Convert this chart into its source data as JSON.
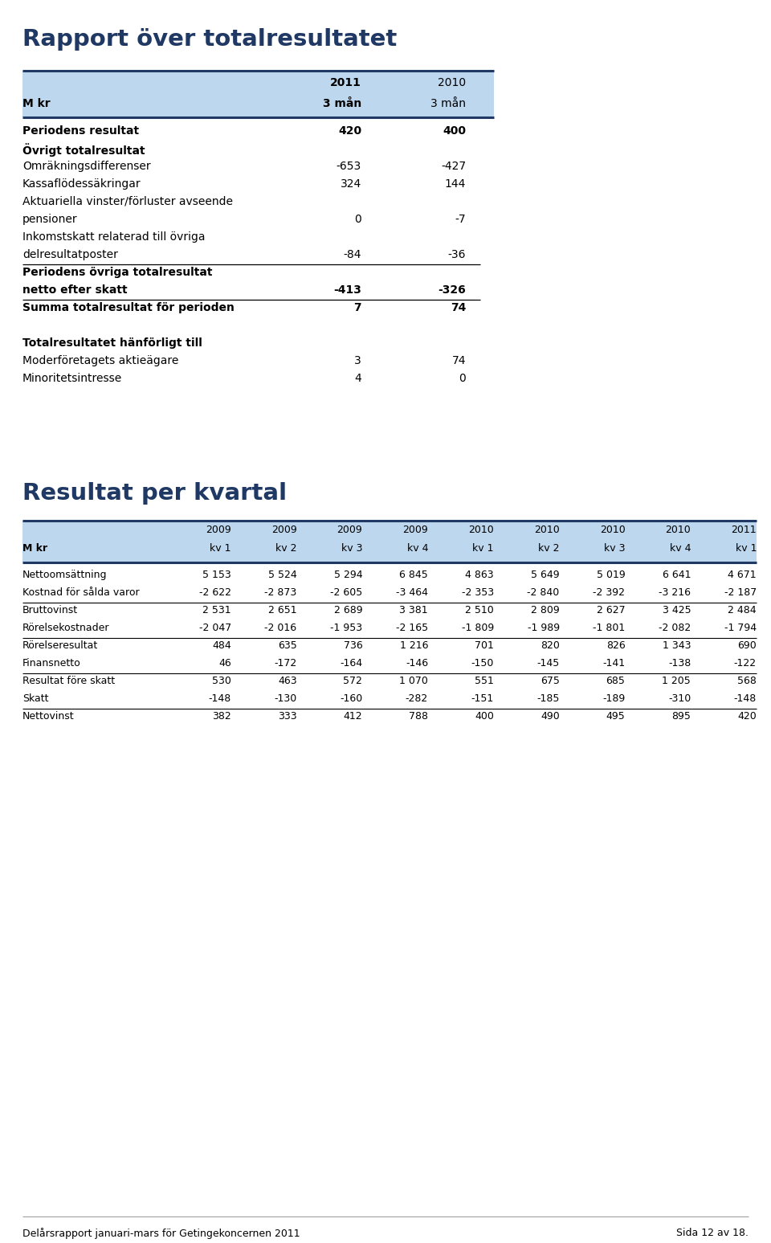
{
  "title1": "Rapport över totalresultatet",
  "title2": "Resultat per kvartal",
  "footer": "Delårsrapport januari-mars för Getingekoncernen 2011",
  "footer_right": "Sida 12 av 18.",
  "title_color": "#1F3864",
  "header_bg": "#BDD7EE",
  "table1": {
    "rows": [
      {
        "label": "Periodens resultat",
        "vals": [
          "420",
          "400"
        ],
        "bold": true,
        "line_below": false,
        "multiline": false
      },
      {
        "label": "Övrigt totalresultat",
        "vals": [
          "",
          ""
        ],
        "bold": true,
        "line_below": false,
        "multiline": false
      },
      {
        "label": "Omräkningsdifferenser",
        "vals": [
          "-653",
          "-427"
        ],
        "bold": false,
        "line_below": false,
        "multiline": false
      },
      {
        "label": "Kassaflödessäkringar",
        "vals": [
          "324",
          "144"
        ],
        "bold": false,
        "line_below": false,
        "multiline": false
      },
      {
        "label": "Aktuariella vinster/förluster avseende",
        "vals": [
          "",
          ""
        ],
        "bold": false,
        "line_below": false,
        "multiline": false
      },
      {
        "label": "pensioner",
        "vals": [
          "0",
          "-7"
        ],
        "bold": false,
        "line_below": false,
        "multiline": false
      },
      {
        "label": "Inkomstskatt relaterad till övriga",
        "vals": [
          "",
          ""
        ],
        "bold": false,
        "line_below": false,
        "multiline": false
      },
      {
        "label": "delresultatposter",
        "vals": [
          "-84",
          "-36"
        ],
        "bold": false,
        "line_below": true,
        "multiline": false
      },
      {
        "label": "Periodens övriga totalresultat",
        "vals": [
          "",
          ""
        ],
        "bold": true,
        "line_below": false,
        "multiline": false
      },
      {
        "label": "netto efter skatt",
        "vals": [
          "-413",
          "-326"
        ],
        "bold": true,
        "line_below": true,
        "multiline": false
      },
      {
        "label": "Summa totalresultat för perioden",
        "vals": [
          "7",
          "74"
        ],
        "bold": true,
        "line_below": false,
        "multiline": false
      },
      {
        "label": "",
        "vals": [
          "",
          ""
        ],
        "bold": false,
        "line_below": false,
        "multiline": false
      },
      {
        "label": "Totalresultatet hänförligt till",
        "vals": [
          "",
          ""
        ],
        "bold": true,
        "line_below": false,
        "multiline": false
      },
      {
        "label": "Moderföretagets aktieägare",
        "vals": [
          "3",
          "74"
        ],
        "bold": false,
        "line_below": false,
        "multiline": false
      },
      {
        "label": "Minoritetsintresse",
        "vals": [
          "4",
          "0"
        ],
        "bold": false,
        "line_below": false,
        "multiline": false
      }
    ]
  },
  "table2": {
    "year_headers": [
      "2009",
      "2009",
      "2009",
      "2009",
      "2010",
      "2010",
      "2010",
      "2010",
      "2011"
    ],
    "kv_headers": [
      "kv 1",
      "kv 2",
      "kv 3",
      "kv 4",
      "kv 1",
      "kv 2",
      "kv 3",
      "kv 4",
      "kv 1"
    ],
    "rows": [
      {
        "label": "Nettoomsättning",
        "vals": [
          "5 153",
          "5 524",
          "5 294",
          "6 845",
          "4 863",
          "5 649",
          "5 019",
          "6 641",
          "4 671"
        ],
        "bold": false,
        "line_below": false
      },
      {
        "label": "Kostnad för sålda varor",
        "vals": [
          "-2 622",
          "-2 873",
          "-2 605",
          "-3 464",
          "-2 353",
          "-2 840",
          "-2 392",
          "-3 216",
          "-2 187"
        ],
        "bold": false,
        "line_below": true
      },
      {
        "label": "Bruttovinst",
        "vals": [
          "2 531",
          "2 651",
          "2 689",
          "3 381",
          "2 510",
          "2 809",
          "2 627",
          "3 425",
          "2 484"
        ],
        "bold": false,
        "line_below": false
      },
      {
        "label": "Rörelsekostnader",
        "vals": [
          "-2 047",
          "-2 016",
          "-1 953",
          "-2 165",
          "-1 809",
          "-1 989",
          "-1 801",
          "-2 082",
          "-1 794"
        ],
        "bold": false,
        "line_below": true
      },
      {
        "label": "Rörelseresultat",
        "vals": [
          "484",
          "635",
          "736",
          "1 216",
          "701",
          "820",
          "826",
          "1 343",
          "690"
        ],
        "bold": false,
        "line_below": false
      },
      {
        "label": "Finansnetto",
        "vals": [
          "46",
          "-172",
          "-164",
          "-146",
          "-150",
          "-145",
          "-141",
          "-138",
          "-122"
        ],
        "bold": false,
        "line_below": true
      },
      {
        "label": "Resultat före skatt",
        "vals": [
          "530",
          "463",
          "572",
          "1 070",
          "551",
          "675",
          "685",
          "1 205",
          "568"
        ],
        "bold": false,
        "line_below": false
      },
      {
        "label": "Skatt",
        "vals": [
          "-148",
          "-130",
          "-160",
          "-282",
          "-151",
          "-185",
          "-189",
          "-310",
          "-148"
        ],
        "bold": false,
        "line_below": true
      },
      {
        "label": "Nettovinst",
        "vals": [
          "382",
          "333",
          "412",
          "788",
          "400",
          "490",
          "495",
          "895",
          "420"
        ],
        "bold": false,
        "line_below": false
      }
    ]
  }
}
